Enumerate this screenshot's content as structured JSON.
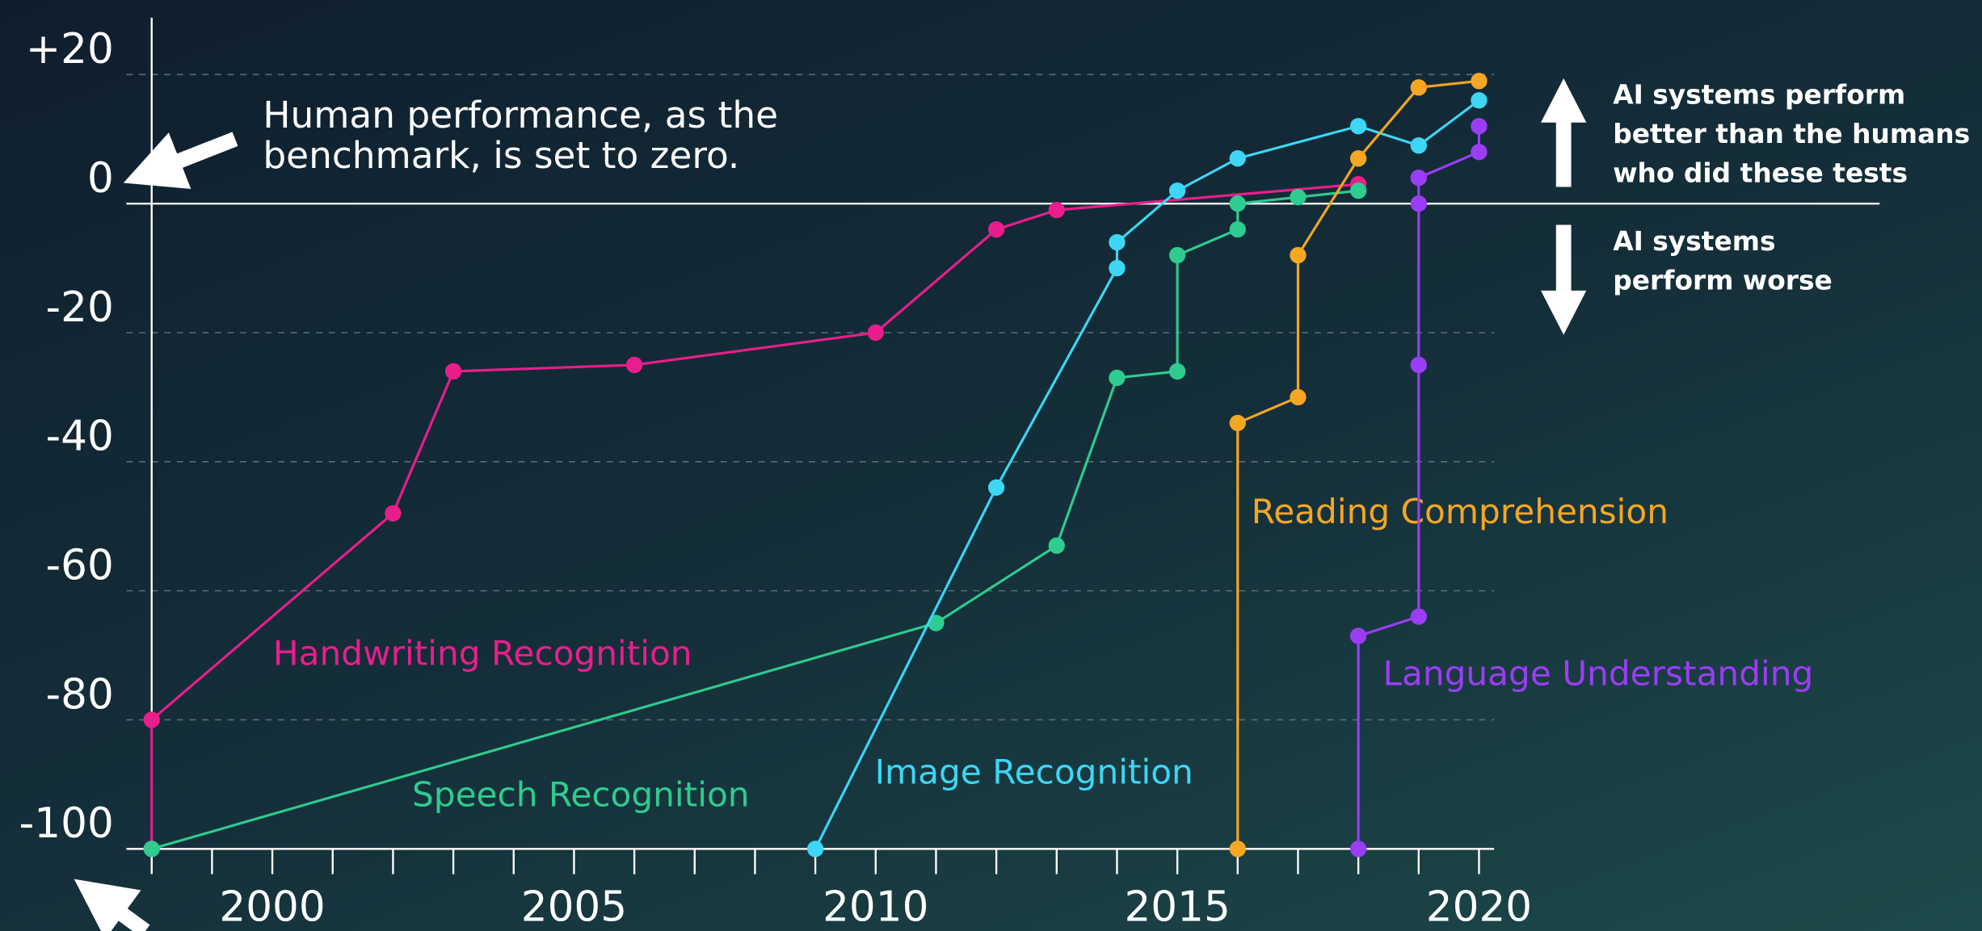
{
  "chart_data": {
    "type": "line",
    "xlim": [
      1998,
      2020.25
    ],
    "xticks": [
      2000,
      2005,
      2010,
      2015,
      2020
    ],
    "xminorticks": [
      1998,
      1999,
      2000,
      2001,
      2002,
      2003,
      2004,
      2005,
      2006,
      2007,
      2008,
      2009,
      2010,
      2011,
      2012,
      2013,
      2014,
      2015,
      2016,
      2017,
      2018,
      2019,
      2020
    ],
    "ylim": [
      -100,
      20
    ],
    "yticks": [
      {
        "value": 20,
        "label": "+20"
      },
      0,
      -20,
      -40,
      -60,
      -80,
      -100
    ],
    "grid": true,
    "annotations": {
      "benchmark": [
        "Human performance, as the",
        "benchmark, is set to zero."
      ],
      "better": [
        "AI systems perform",
        "better than the humans",
        "who did these tests"
      ],
      "worse": [
        "AI systems",
        "perform worse"
      ]
    },
    "series": [
      {
        "name": "Handwriting Recognition",
        "color": "#e91e8c",
        "x": [
          1998,
          1998,
          2002,
          2003,
          2006,
          2010,
          2012,
          2013,
          2018
        ],
        "values": [
          -100,
          -80,
          -48,
          -26,
          -25,
          -20,
          -4,
          -1,
          3
        ]
      },
      {
        "name": "Speech Recognition",
        "color": "#2ecc8f",
        "x": [
          1998,
          2011,
          2013,
          2014,
          2015,
          2015,
          2016,
          2016,
          2017,
          2018
        ],
        "values": [
          -100,
          -65,
          -53,
          -27,
          -26,
          -8,
          -4,
          0,
          1,
          2
        ]
      },
      {
        "name": "Image Recognition",
        "color": "#3dd6f5",
        "x": [
          2009,
          2012,
          2014,
          2014,
          2015,
          2016,
          2018,
          2019,
          2020
        ],
        "values": [
          -100,
          -44,
          -10,
          -6,
          2,
          7,
          12,
          9,
          16
        ]
      },
      {
        "name": "Reading Comprehension",
        "color": "#f5a623",
        "x": [
          2016,
          2016,
          2017,
          2017,
          2018,
          2019,
          2020
        ],
        "values": [
          -100,
          -34,
          -30,
          -8,
          7,
          18,
          19
        ]
      },
      {
        "name": "Language Understanding",
        "color": "#9b3df5",
        "x": [
          2018,
          2018,
          2019,
          2019,
          2019,
          2019,
          2020,
          2020
        ],
        "values": [
          -100,
          -67,
          -64,
          -25,
          0,
          4,
          8,
          12
        ]
      }
    ]
  }
}
